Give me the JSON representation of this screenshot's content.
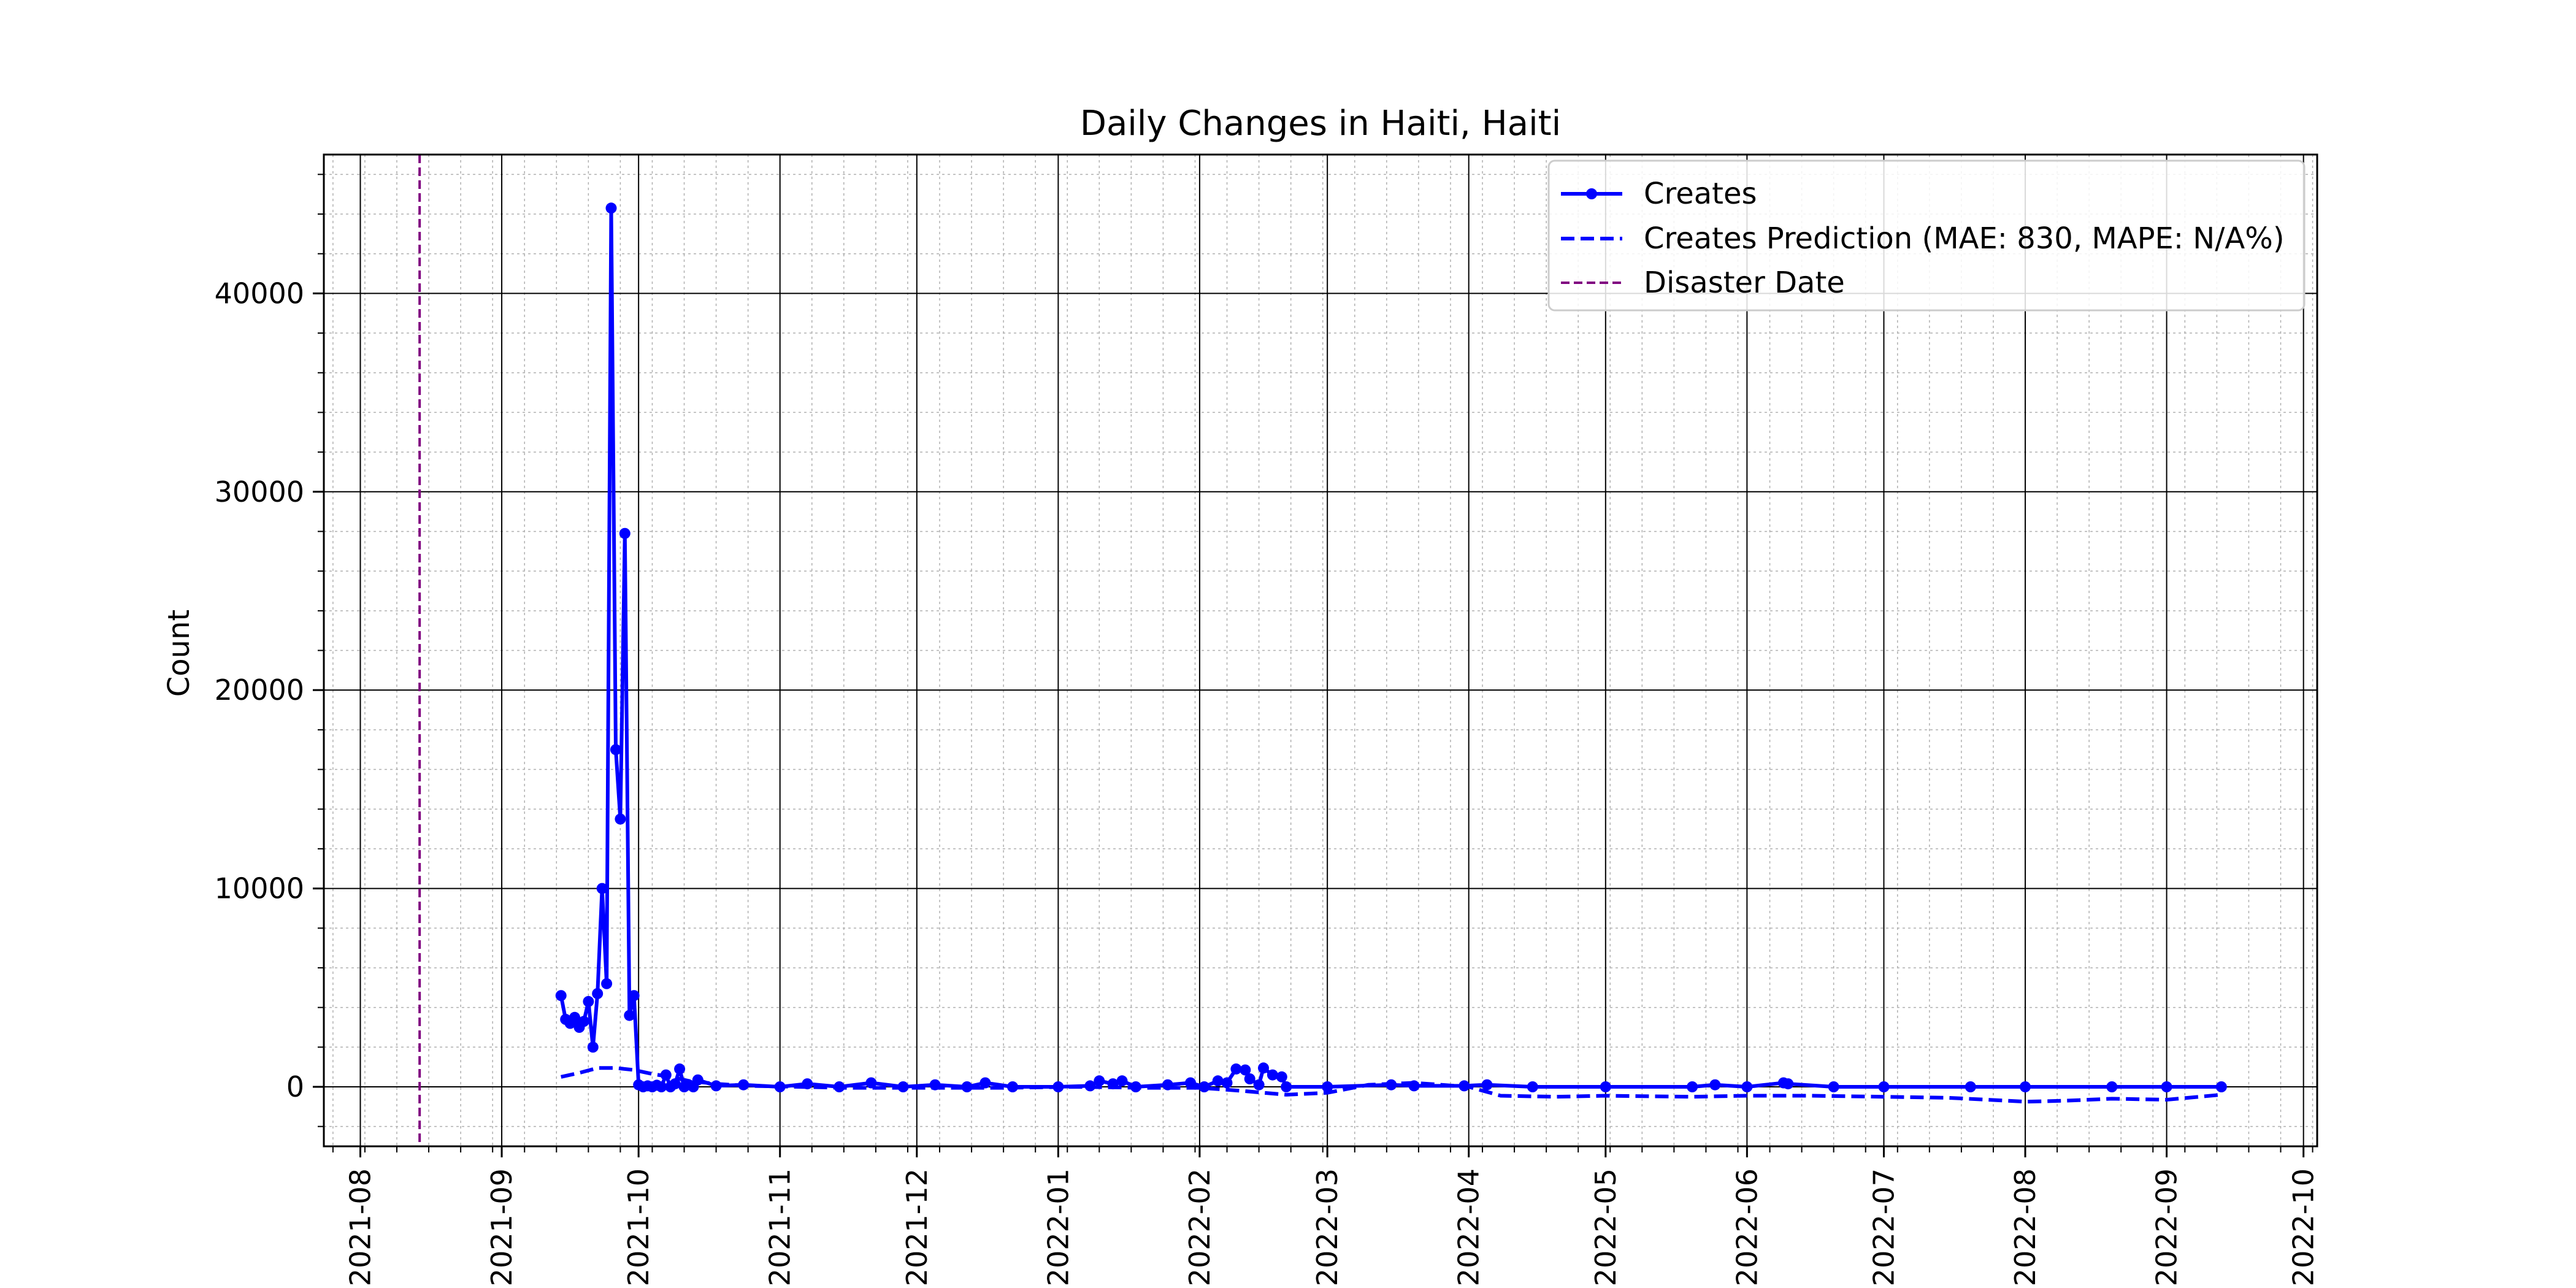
{
  "chart_data": {
    "type": "line",
    "title": "Daily Changes in Haiti, Haiti",
    "xlabel": "",
    "ylabel": "Count",
    "xlim": [
      "2021-07-24",
      "2022-10-04"
    ],
    "ylim": [
      -3000,
      47000
    ],
    "x_ticks": [
      "2021-08-01",
      "2021-09-01",
      "2021-10-01",
      "2021-11-01",
      "2021-12-01",
      "2022-01-01",
      "2022-02-01",
      "2022-03-01",
      "2022-04-01",
      "2022-05-01",
      "2022-06-01",
      "2022-07-01",
      "2022-08-01",
      "2022-09-01",
      "2022-10-01"
    ],
    "x_tick_labels": [
      "2021-08",
      "2021-09",
      "2021-10",
      "2021-11",
      "2021-12",
      "2022-01",
      "2022-02",
      "2022-03",
      "2022-04",
      "2022-05",
      "2022-06",
      "2022-07",
      "2022-08",
      "2022-09",
      "2022-10"
    ],
    "y_ticks": [
      0,
      10000,
      20000,
      30000,
      40000
    ],
    "y_tick_labels": [
      "0",
      "10000",
      "20000",
      "30000",
      "40000"
    ],
    "grid": true,
    "minor_grid": true,
    "legend_position": "top-right",
    "legend": [
      "Creates",
      "Creates Prediction (MAE: 830, MAPE: N/A%)",
      "Disaster Date"
    ],
    "colors": {
      "creates": "#0000ff",
      "prediction": "#0000ff",
      "disaster": "#800080"
    },
    "disaster_date": "2021-08-14",
    "series": [
      {
        "name": "Creates",
        "style": "solid-marker",
        "points": [
          [
            "2021-09-14",
            4600
          ],
          [
            "2021-09-15",
            3400
          ],
          [
            "2021-09-16",
            3200
          ],
          [
            "2021-09-17",
            3500
          ],
          [
            "2021-09-18",
            3000
          ],
          [
            "2021-09-19",
            3300
          ],
          [
            "2021-09-20",
            4300
          ],
          [
            "2021-09-21",
            2000
          ],
          [
            "2021-09-22",
            4700
          ],
          [
            "2021-09-23",
            10000
          ],
          [
            "2021-09-24",
            5200
          ],
          [
            "2021-09-25",
            44300
          ],
          [
            "2021-09-26",
            17000
          ],
          [
            "2021-09-27",
            13500
          ],
          [
            "2021-09-28",
            27900
          ],
          [
            "2021-09-29",
            3600
          ],
          [
            "2021-09-30",
            4600
          ],
          [
            "2021-10-01",
            100
          ],
          [
            "2021-10-02",
            0
          ],
          [
            "2021-10-03",
            50
          ],
          [
            "2021-10-04",
            0
          ],
          [
            "2021-10-05",
            80
          ],
          [
            "2021-10-06",
            0
          ],
          [
            "2021-10-07",
            600
          ],
          [
            "2021-10-08",
            0
          ],
          [
            "2021-10-09",
            150
          ],
          [
            "2021-10-10",
            900
          ],
          [
            "2021-10-11",
            0
          ],
          [
            "2021-10-12",
            100
          ],
          [
            "2021-10-13",
            0
          ],
          [
            "2021-10-14",
            350
          ],
          [
            "2021-10-18",
            50
          ],
          [
            "2021-10-24",
            100
          ],
          [
            "2021-11-01",
            0
          ],
          [
            "2021-11-07",
            150
          ],
          [
            "2021-11-14",
            0
          ],
          [
            "2021-11-21",
            200
          ],
          [
            "2021-11-28",
            0
          ],
          [
            "2021-12-05",
            100
          ],
          [
            "2021-12-12",
            0
          ],
          [
            "2021-12-16",
            200
          ],
          [
            "2021-12-22",
            0
          ],
          [
            "2022-01-01",
            0
          ],
          [
            "2022-01-08",
            50
          ],
          [
            "2022-01-10",
            300
          ],
          [
            "2022-01-13",
            150
          ],
          [
            "2022-01-15",
            300
          ],
          [
            "2022-01-18",
            0
          ],
          [
            "2022-01-25",
            100
          ],
          [
            "2022-01-30",
            200
          ],
          [
            "2022-02-02",
            0
          ],
          [
            "2022-02-05",
            300
          ],
          [
            "2022-02-07",
            200
          ],
          [
            "2022-02-09",
            900
          ],
          [
            "2022-02-11",
            850
          ],
          [
            "2022-02-12",
            400
          ],
          [
            "2022-02-14",
            100
          ],
          [
            "2022-02-15",
            950
          ],
          [
            "2022-02-17",
            600
          ],
          [
            "2022-02-19",
            500
          ],
          [
            "2022-02-20",
            0
          ],
          [
            "2022-03-01",
            0
          ],
          [
            "2022-03-15",
            100
          ],
          [
            "2022-03-20",
            50
          ],
          [
            "2022-03-31",
            50
          ],
          [
            "2022-04-05",
            100
          ],
          [
            "2022-04-15",
            0
          ],
          [
            "2022-05-01",
            0
          ],
          [
            "2022-05-20",
            0
          ],
          [
            "2022-05-25",
            100
          ],
          [
            "2022-06-01",
            0
          ],
          [
            "2022-06-09",
            200
          ],
          [
            "2022-06-10",
            150
          ],
          [
            "2022-06-20",
            0
          ],
          [
            "2022-07-01",
            0
          ],
          [
            "2022-07-20",
            0
          ],
          [
            "2022-08-01",
            0
          ],
          [
            "2022-08-20",
            0
          ],
          [
            "2022-09-01",
            0
          ],
          [
            "2022-09-13",
            0
          ]
        ]
      },
      {
        "name": "Creates Prediction (MAE: 830, MAPE: N/A%)",
        "style": "dashed",
        "points": [
          [
            "2021-09-14",
            500
          ],
          [
            "2021-09-18",
            700
          ],
          [
            "2021-09-22",
            950
          ],
          [
            "2021-09-26",
            950
          ],
          [
            "2021-09-30",
            850
          ],
          [
            "2021-10-04",
            650
          ],
          [
            "2021-10-08",
            500
          ],
          [
            "2021-10-12",
            300
          ],
          [
            "2021-10-18",
            150
          ],
          [
            "2021-10-25",
            50
          ],
          [
            "2021-11-05",
            0
          ],
          [
            "2021-11-15",
            -50
          ],
          [
            "2021-12-01",
            -50
          ],
          [
            "2021-12-20",
            -50
          ],
          [
            "2022-01-05",
            0
          ],
          [
            "2022-01-20",
            -50
          ],
          [
            "2022-02-01",
            -50
          ],
          [
            "2022-02-10",
            -200
          ],
          [
            "2022-02-20",
            -400
          ],
          [
            "2022-03-01",
            -300
          ],
          [
            "2022-03-10",
            100
          ],
          [
            "2022-03-20",
            200
          ],
          [
            "2022-04-01",
            0
          ],
          [
            "2022-04-08",
            -450
          ],
          [
            "2022-04-20",
            -500
          ],
          [
            "2022-05-01",
            -450
          ],
          [
            "2022-05-20",
            -500
          ],
          [
            "2022-06-01",
            -450
          ],
          [
            "2022-06-15",
            -450
          ],
          [
            "2022-07-01",
            -500
          ],
          [
            "2022-07-15",
            -550
          ],
          [
            "2022-08-01",
            -750
          ],
          [
            "2022-08-10",
            -700
          ],
          [
            "2022-08-20",
            -600
          ],
          [
            "2022-09-01",
            -650
          ],
          [
            "2022-09-13",
            -400
          ]
        ]
      }
    ]
  }
}
